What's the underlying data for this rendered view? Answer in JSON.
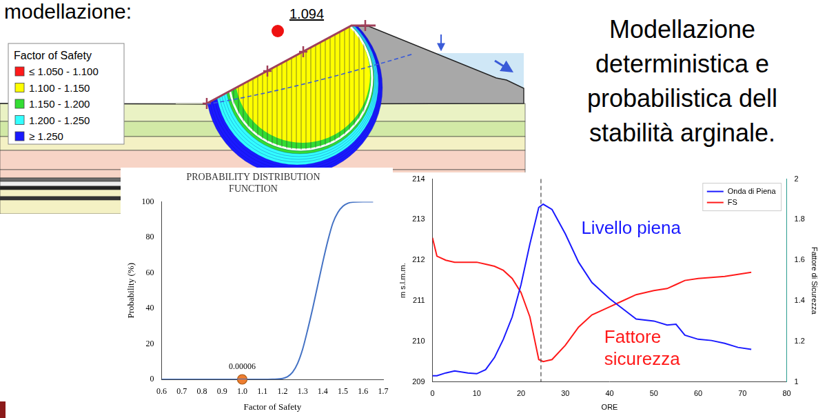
{
  "slide": {
    "heading": "modellazione:",
    "title_lines": [
      "Modellazione",
      "deterministica e",
      "probabilistica dell",
      "stabilità arginale."
    ]
  },
  "diagram": {
    "critical_fs": 1.094,
    "legend": {
      "title": "Factor of Safety",
      "entries": [
        {
          "label": "≤ 1.050 - 1.100",
          "color": "#ff1a1a"
        },
        {
          "label": "1.100 - 1.150",
          "color": "#ffff00"
        },
        {
          "label": "1.150 - 1.200",
          "color": "#33dd33"
        },
        {
          "label": "1.200 - 1.250",
          "color": "#33ffff"
        },
        {
          "label": "≥ 1.250",
          "color": "#1a1aff"
        }
      ]
    }
  },
  "chart_data": [
    {
      "type": "line",
      "title": "PROBABILITY DISTRIBUTION FUNCTION",
      "x_label": "Factor of Safety",
      "y_label": "Probability (%)",
      "x": [
        0.6,
        0.7,
        0.8,
        0.9,
        1.0,
        1.1,
        1.15,
        1.2,
        1.225,
        1.25,
        1.275,
        1.3,
        1.325,
        1.35,
        1.375,
        1.4,
        1.425,
        1.45,
        1.475,
        1.5,
        1.525,
        1.55,
        1.6,
        1.65
      ],
      "values": [
        0,
        0,
        0,
        0,
        0,
        0,
        0.1,
        0.5,
        1.5,
        4,
        9,
        17,
        28,
        40,
        53,
        66,
        78,
        88,
        94,
        97.5,
        99.2,
        99.8,
        100,
        100
      ],
      "color": "#4472c4",
      "highlight": {
        "x": 1.0,
        "y": 6e-05,
        "color": "#ed7d31",
        "data_labels": true
      },
      "xlim": [
        0.6,
        1.7
      ],
      "xticks": [
        0.6,
        0.7,
        0.8,
        0.9,
        {
          "value": 1.0,
          "label": "1.0"
        },
        1.1,
        1.2,
        1.3,
        1.4,
        1.5,
        1.6,
        1.7
      ],
      "ylim": [
        0,
        100
      ],
      "yticks": [
        0,
        20,
        40,
        60,
        80,
        100
      ],
      "grid": false
    },
    {
      "type": "line",
      "x_label": "ORE",
      "y_label": "m s.l.m.m.",
      "y2_label": "Fattore di Sicurezza",
      "x": [
        0,
        1,
        3,
        5,
        8,
        10,
        12,
        14,
        16,
        18,
        20,
        22,
        24,
        25,
        27,
        30,
        33,
        36,
        40,
        43,
        46,
        50,
        53,
        55,
        57,
        60,
        63,
        66,
        69,
        72
      ],
      "series": [
        {
          "name": "Onda di Piena",
          "color": "#1a1aff",
          "values": [
            209.15,
            209.15,
            209.22,
            209.27,
            209.22,
            209.2,
            209.3,
            209.6,
            210.05,
            210.6,
            211.4,
            212.4,
            213.3,
            213.38,
            213.25,
            212.65,
            211.95,
            211.45,
            211.05,
            210.8,
            210.55,
            210.5,
            210.4,
            210.42,
            210.15,
            210.05,
            210.02,
            209.95,
            209.85,
            209.8
          ]
        },
        {
          "name": "FS",
          "color": "#ff1a1a",
          "axis": "y2",
          "values": [
            1.71,
            1.62,
            1.6,
            1.59,
            1.59,
            1.59,
            1.58,
            1.57,
            1.55,
            1.51,
            1.44,
            1.32,
            1.11,
            1.1,
            1.11,
            1.18,
            1.27,
            1.33,
            1.37,
            1.4,
            1.43,
            1.45,
            1.46,
            1.48,
            1.5,
            1.51,
            1.515,
            1.52,
            1.53,
            1.54
          ]
        }
      ],
      "xlim": [
        0,
        80
      ],
      "xticks": [
        0,
        10,
        20,
        30,
        40,
        50,
        60,
        70,
        80
      ],
      "ylim": [
        209,
        214
      ],
      "yticks": [
        209,
        210,
        211,
        212,
        213,
        214
      ],
      "y2lim": [
        1,
        2
      ],
      "y2ticks": [
        1,
        1.2,
        1.4,
        1.6,
        1.8,
        2
      ],
      "vline": 24.5,
      "legend": "upper right",
      "grid": false,
      "annotations": [
        {
          "text": "Livello piena",
          "color": "#1a1aff"
        },
        {
          "text": "Fattore sicurezza",
          "color": "#ff1a1a"
        }
      ]
    }
  ]
}
